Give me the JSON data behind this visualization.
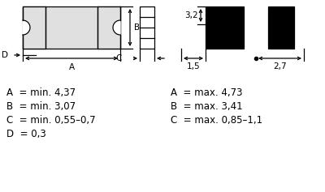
{
  "bg_color": "#ffffff",
  "line_color": "#000000",
  "gray_fill": "#e0e0e0",
  "text_lines": [
    "A  = min. 4,37",
    "B  = min. 3,07",
    "C  = min. 0,55–0,7",
    "D  = 0,3"
  ],
  "text_lines_right": [
    "A  = max. 4,73",
    "B  = max. 3,41",
    "C  = max. 0,85–1,1"
  ],
  "dim_32": "3,2",
  "dim_15": "1,5",
  "dim_27": "2,7",
  "dim_A": "A",
  "dim_B": "B",
  "dim_C": "C",
  "dim_D": "D"
}
